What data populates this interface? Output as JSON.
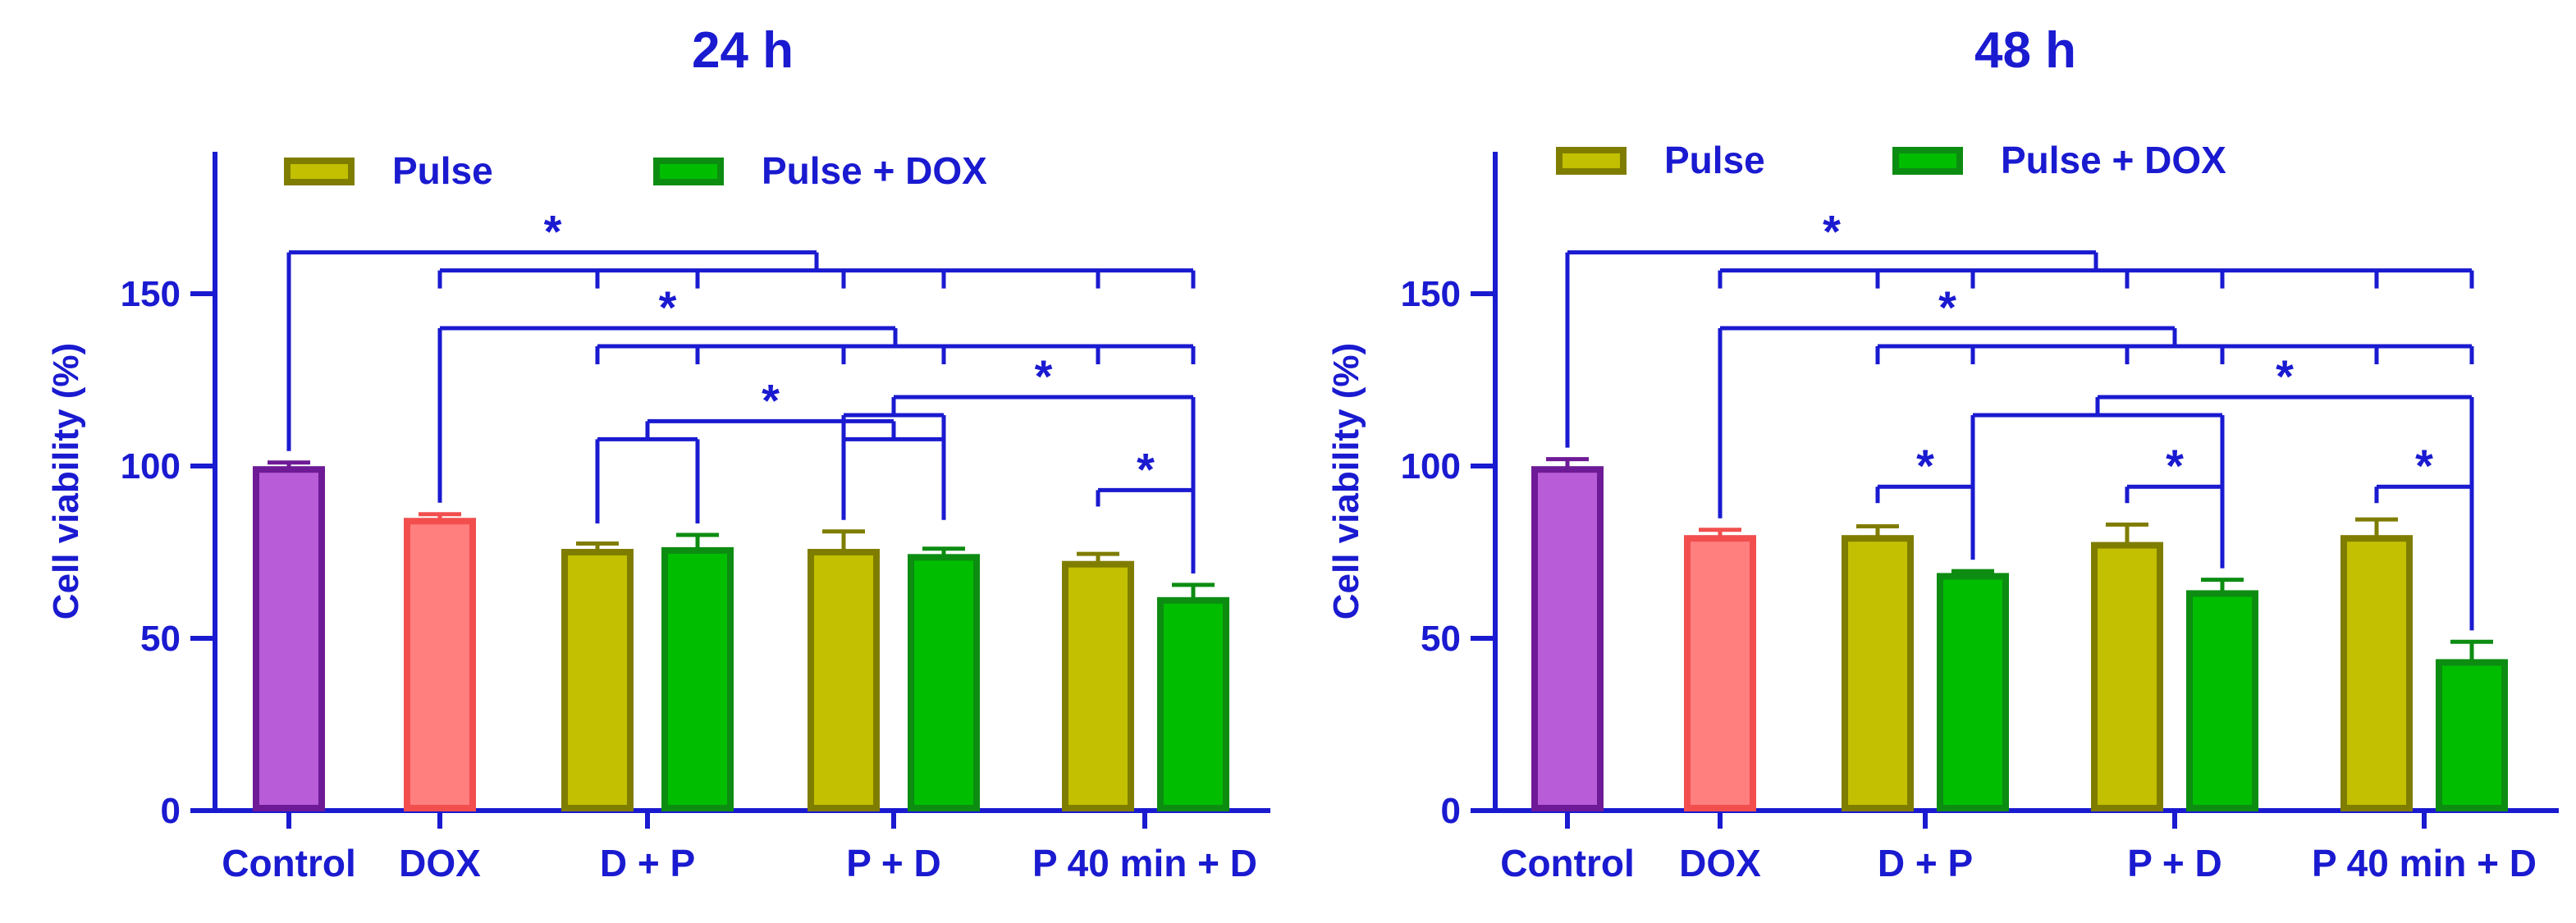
{
  "figure": {
    "colors": {
      "axis": "#1a1ad0",
      "text": "#1a1ad0"
    }
  },
  "chart_data": [
    {
      "type": "bar",
      "title": "24 h",
      "xlabel": "",
      "ylabel": "Cell viability (%)",
      "ylim": [
        0,
        190
      ],
      "yticks": [
        0,
        50,
        100,
        150
      ],
      "ytick_labels": [
        "0",
        "50",
        "100",
        "150"
      ],
      "categories": [
        "Control",
        "DOX",
        "D + P",
        "P + D",
        "P 40 min + D"
      ],
      "legend": [
        "Pulse",
        "Pulse + DOX"
      ],
      "legend_position": "top",
      "bars": [
        {
          "category": "Control",
          "series": "Control",
          "value": 99,
          "error": 2
        },
        {
          "category": "DOX",
          "series": "DOX",
          "value": 84,
          "error": 2
        },
        {
          "category": "D + P",
          "series": "Pulse",
          "value": 75,
          "error": 2.5
        },
        {
          "category": "D + P",
          "series": "Pulse + DOX",
          "value": 75.5,
          "error": 4.5
        },
        {
          "category": "P + D",
          "series": "Pulse",
          "value": 75,
          "error": 6
        },
        {
          "category": "P + D",
          "series": "Pulse + DOX",
          "value": 73.5,
          "error": 2.5
        },
        {
          "category": "P 40 min + D",
          "series": "Pulse",
          "value": 71.5,
          "error": 3
        },
        {
          "category": "P 40 min + D",
          "series": "Pulse + DOX",
          "value": 61,
          "error": 4.5
        }
      ],
      "colors": {
        "Control": {
          "fill": "#b85cd8",
          "stroke": "#6e1a96"
        },
        "DOX": {
          "fill": "#ff7f7f",
          "stroke": "#f24e4e"
        },
        "Pulse": {
          "fill": "#c2c000",
          "stroke": "#7f7d00"
        },
        "Pulse + DOX": {
          "fill": "#00bd00",
          "stroke": "#0d8c12"
        }
      },
      "significance": [
        {
          "label": "*",
          "from": [
            0
          ],
          "to": [
            1,
            2,
            3,
            4,
            5,
            6,
            7
          ],
          "level": 162
        },
        {
          "label": "*",
          "from": [
            1
          ],
          "to": [
            2,
            3,
            4,
            5,
            6,
            7
          ],
          "level": 140
        },
        {
          "label": "*",
          "from": [
            2,
            3
          ],
          "to": [
            4,
            5
          ],
          "level": 113
        },
        {
          "label": "*",
          "from": [
            4,
            5
          ],
          "to": [
            7
          ],
          "level": 120
        },
        {
          "label": "*",
          "from": [
            6
          ],
          "to": [
            7
          ],
          "level": 93
        }
      ]
    },
    {
      "type": "bar",
      "title": "48 h",
      "xlabel": "",
      "ylabel": "Cell viability (%)",
      "ylim": [
        0,
        190
      ],
      "yticks": [
        0,
        50,
        100,
        150
      ],
      "ytick_labels": [
        "0",
        "50",
        "100",
        "150"
      ],
      "categories": [
        "Control",
        "DOX",
        "D + P",
        "P + D",
        "P 40 min + D"
      ],
      "legend": [
        "Pulse",
        "Pulse + DOX"
      ],
      "legend_position": "top",
      "bars": [
        {
          "category": "Control",
          "series": "Control",
          "value": 99,
          "error": 3
        },
        {
          "category": "DOX",
          "series": "DOX",
          "value": 79,
          "error": 2.5
        },
        {
          "category": "D + P",
          "series": "Pulse",
          "value": 79,
          "error": 3.5
        },
        {
          "category": "D + P",
          "series": "Pulse + DOX",
          "value": 68,
          "error": 1.5
        },
        {
          "category": "P + D",
          "series": "Pulse",
          "value": 77,
          "error": 6
        },
        {
          "category": "P + D",
          "series": "Pulse + DOX",
          "value": 63,
          "error": 4
        },
        {
          "category": "P 40 min + D",
          "series": "Pulse",
          "value": 79,
          "error": 5.5
        },
        {
          "category": "P 40 min + D",
          "series": "Pulse + DOX",
          "value": 43,
          "error": 6
        }
      ],
      "colors": {
        "Control": {
          "fill": "#b85cd8",
          "stroke": "#6e1a96"
        },
        "DOX": {
          "fill": "#ff7f7f",
          "stroke": "#f24e4e"
        },
        "Pulse": {
          "fill": "#c2c000",
          "stroke": "#7f7d00"
        },
        "Pulse + DOX": {
          "fill": "#00bd00",
          "stroke": "#0d8c12"
        }
      },
      "significance": [
        {
          "label": "*",
          "from": [
            0
          ],
          "to": [
            1,
            2,
            3,
            4,
            5,
            6,
            7
          ],
          "level": 162
        },
        {
          "label": "*",
          "from": [
            1
          ],
          "to": [
            2,
            3,
            4,
            5,
            6,
            7
          ],
          "level": 140
        },
        {
          "label": "*",
          "from": [
            3,
            5
          ],
          "to": [
            7
          ],
          "level": 120
        },
        {
          "label": "*",
          "from": [
            2
          ],
          "to": [
            3
          ],
          "level": 94
        },
        {
          "label": "*",
          "from": [
            4
          ],
          "to": [
            5
          ],
          "level": 94
        },
        {
          "label": "*",
          "from": [
            6
          ],
          "to": [
            7
          ],
          "level": 94
        }
      ]
    }
  ]
}
